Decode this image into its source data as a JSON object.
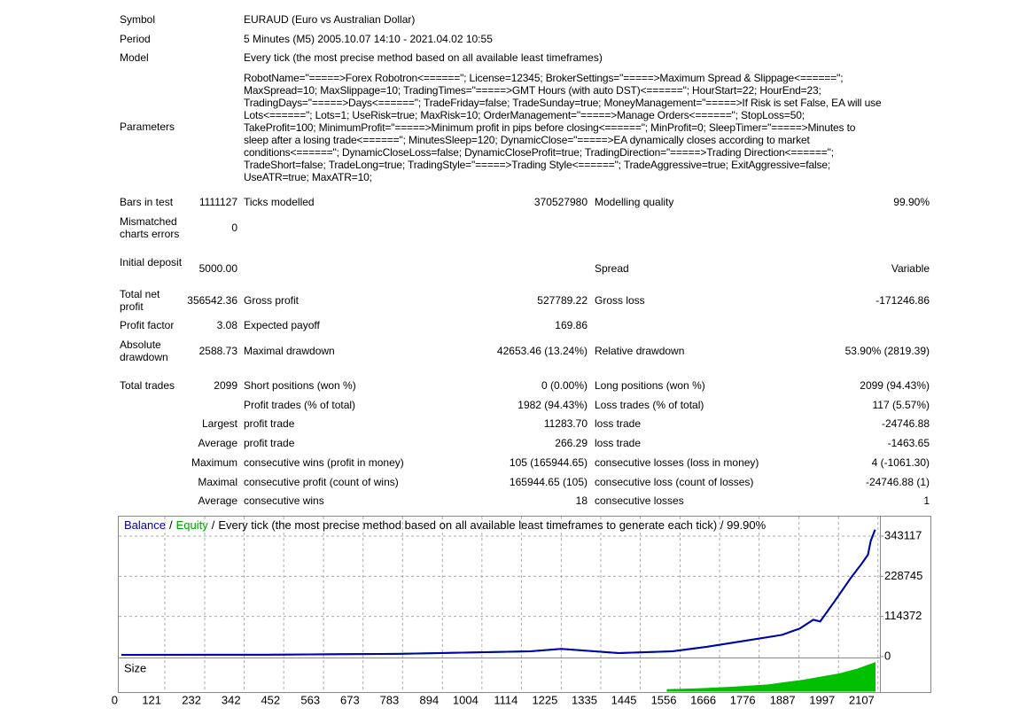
{
  "header": {
    "symbol": [
      "Symbol",
      "EURAUD (Euro vs Australian Dollar)"
    ],
    "period": [
      "Period",
      "5 Minutes (M5) 2005.10.07 14:10 - 2021.04.02 10:55"
    ],
    "model": [
      "Model",
      "Every tick (the most precise method based on all available least timeframes)"
    ],
    "parameters": [
      "Parameters",
      "RobotName=\"=====>Forex Robotron<======\"; License=12345; BrokerSettings=\"=====>Maximum Spread & Slippage<======\";\nMaxSpread=10; MaxSlippage=10; TradingTimes=\"=====>GMT Hours (with auto DST)<======\"; HourStart=22; HourEnd=23;\nTradingDays=\"=====>Days<======\"; TradeFriday=false; TradeSunday=true; MoneyManagement=\"=====>If Risk is set False, EA will use\nLots<======\"; Lots=1; UseRisk=true; MaxRisk=10; OrderManagement=\"=====>Manage Orders<======\"; StopLoss=50;\nTakeProfit=100; MinimumProfit=\"=====>Minimum profit in pips before closing<======\"; MinProfit=0; SleepTimer=\"=====>Minutes to\nsleep after a losing trade<======\"; MinutesSleep=120; DynamicClose=\"=====>EA dynamically closes according to market\nconditions<======\"; DynamicCloseLoss=false; DynamicCloseProfit=true; TradingDirection=\"=====>Trading Direction<======\";\nTradeShort=false; TradeLong=true; TradingStyle=\"=====>Trading Style<======\"; TradeAggressive=true; ExitAggressive=false;\nUseATR=true; MaxATR=10;"
    ]
  },
  "stats": [
    [
      "Bars in test",
      "1111127",
      "Ticks modelled",
      "370527980",
      "Modelling quality",
      "99.90%"
    ],
    [
      "Mismatched charts errors",
      "0",
      null,
      null,
      null,
      null
    ],
    [
      "Initial deposit",
      "5000.00",
      null,
      null,
      "Spread",
      "Variable"
    ],
    [
      "Total net profit",
      "356542.36",
      "Gross profit",
      "527789.22",
      "Gross loss",
      "-171246.86"
    ],
    [
      "Profit factor",
      "3.08",
      "Expected payoff",
      "169.86",
      null,
      null
    ],
    [
      "Absolute drawdown",
      "2588.73",
      "Maximal drawdown",
      "42653.46 (13.24%)",
      "Relative drawdown",
      "53.90% (2819.39)"
    ],
    [
      "Total trades",
      "2099",
      "Short positions (won %)",
      "0 (0.00%)",
      "Long positions (won %)",
      "2099 (94.43%)"
    ],
    [
      null,
      null,
      "Profit trades (% of total)",
      "1982 (94.43%)",
      "Loss trades (% of total)",
      "117 (5.57%)"
    ],
    [
      null,
      "Largest",
      "profit trade",
      "11283.70",
      "loss trade",
      "-24746.88"
    ],
    [
      null,
      "Average",
      "profit trade",
      "266.29",
      "loss trade",
      "-1463.65"
    ],
    [
      null,
      "Maximum",
      "consecutive wins (profit in money)",
      "105 (165944.65)",
      "consecutive losses (loss in money)",
      "4 (-1061.30)"
    ],
    [
      null,
      "Maximal",
      "consecutive profit (count of wins)",
      "165944.65 (105)",
      "consecutive loss (count of losses)",
      "-24746.88 (1)"
    ],
    [
      null,
      "Average",
      "consecutive wins",
      "18",
      "consecutive losses",
      "1"
    ]
  ],
  "chart_data": {
    "type": "line",
    "separator": "/",
    "title": "Every tick (the most precise method based on all available least timeframes to generate each tick) / 99.90%",
    "x": [
      0,
      401,
      770,
      1139,
      1225,
      1385,
      1533,
      1631,
      1754,
      1840,
      1889,
      1927,
      1946,
      1988,
      2032,
      2062,
      2079,
      2087,
      2099
    ],
    "series": [
      {
        "name": "Balance",
        "color": "#0000b0",
        "values": [
          5000,
          5500,
          8000,
          15000,
          22000,
          10000,
          15000,
          28000,
          48000,
          62000,
          80000,
          105000,
          100000,
          160000,
          225000,
          265000,
          290000,
          330000,
          361542
        ]
      },
      {
        "name": "Equity",
        "color": "#00a000",
        "values": [
          5000,
          5500,
          8000,
          15000,
          22000,
          10000,
          15000,
          28000,
          48000,
          62000,
          80000,
          105000,
          100000,
          160000,
          225000,
          265000,
          290000,
          330000,
          361542
        ]
      }
    ],
    "xlim": [
      0,
      2110
    ],
    "xticks": [
      0,
      121,
      232,
      342,
      452,
      563,
      673,
      783,
      894,
      1004,
      1114,
      1225,
      1335,
      1445,
      1556,
      1666,
      1776,
      1887,
      1997,
      2107
    ],
    "ylim": [
      0,
      393600
    ],
    "yticks": [
      0,
      114372,
      228745,
      343117
    ],
    "grid": true,
    "size": {
      "name": "Size",
      "color": "#00c000",
      "x": [
        1520,
        1600,
        1700,
        1800,
        1900,
        2000,
        2050,
        2099
      ],
      "values": [
        2,
        3,
        5,
        8,
        14,
        22,
        28,
        36
      ],
      "ylim": [
        0,
        38
      ]
    }
  }
}
